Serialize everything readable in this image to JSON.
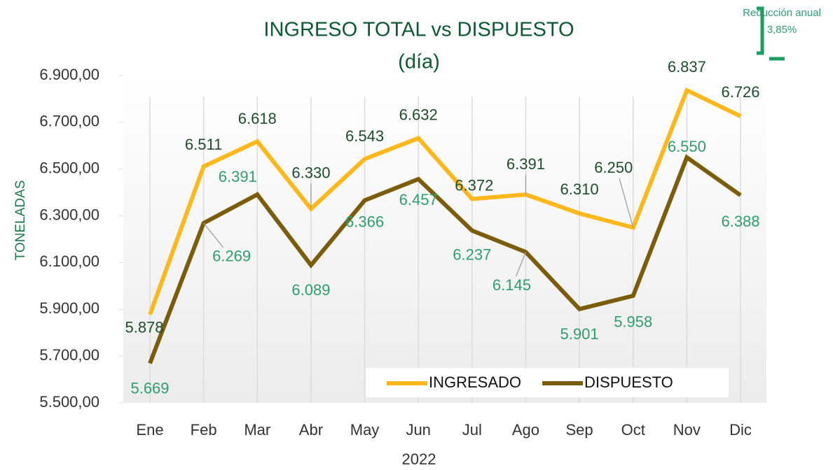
{
  "chart_data": {
    "type": "line",
    "title": "INGRESO TOTAL vs DISPUESTO",
    "subtitle": "(día)",
    "annotation": [
      "Reducción anual",
      "3,85%"
    ],
    "xlabel": "2022",
    "ylabel": "TONELADAS",
    "categories": [
      "Ene",
      "Feb",
      "Mar",
      "Abr",
      "May",
      "Jun",
      "Jul",
      "Ago",
      "Sep",
      "Oct",
      "Nov",
      "Dic"
    ],
    "series": [
      {
        "name": "INGRESADO",
        "color": "#ffb81c",
        "values": [
          5878,
          6511,
          6618,
          6330,
          6543,
          6632,
          6372,
          6391,
          6310,
          6250,
          6837,
          6726
        ],
        "value_labels": [
          "5.878",
          "6.511",
          "6.618",
          "6.330",
          "6.543",
          "6.632",
          "6.372",
          "6.391",
          "6.310",
          "6.250",
          "6.837",
          "6.726"
        ]
      },
      {
        "name": "DISPUESTO",
        "color": "#7a5c0a",
        "values": [
          5669,
          6269,
          6391,
          6089,
          6366,
          6457,
          6237,
          6145,
          5901,
          5958,
          6550,
          6388
        ],
        "value_labels": [
          "5.669",
          "6.269",
          "6.391",
          "6.089",
          "6.366",
          "6.457",
          "6.237",
          "6.145",
          "5.901",
          "5.958",
          "6.550",
          "6.388"
        ]
      }
    ],
    "ylim": [
      5500,
      6900
    ],
    "yticks": [
      {
        "value": 5500,
        "label": "5.500,00"
      },
      {
        "value": 5700,
        "label": "5.700,00"
      },
      {
        "value": 5900,
        "label": "5.900,00"
      },
      {
        "value": 6100,
        "label": "6.100,00"
      },
      {
        "value": 6300,
        "label": "6.300,00"
      },
      {
        "value": 6500,
        "label": "6.500,00"
      },
      {
        "value": 6700,
        "label": "6.700,00"
      },
      {
        "value": 6900,
        "label": "6.900,00"
      }
    ],
    "grid": true,
    "legend": "lower right"
  }
}
